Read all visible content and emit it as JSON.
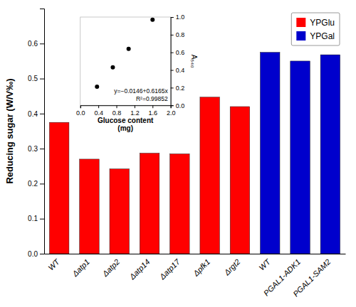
{
  "chart_data": [
    {
      "type": "bar",
      "categories": [
        "WT",
        "Δatp1",
        "Δatp2",
        "Δatp14",
        "Δatp17",
        "Δpfk1",
        "Δrgt2",
        "WT",
        "PGAL1-ADK1",
        "PGAL1-SAM2"
      ],
      "series": [
        {
          "name": "YPGlu",
          "color": "#ff0000",
          "values": [
            0.375,
            0.27,
            0.242,
            0.287,
            0.285,
            0.447,
            0.42,
            null,
            null,
            null
          ]
        },
        {
          "name": "YPGal",
          "color": "#0000cc",
          "values": [
            null,
            null,
            null,
            null,
            null,
            null,
            null,
            0.575,
            0.55,
            0.568
          ]
        }
      ],
      "ylabel": "Reducing sugar (W/V‰)",
      "ylim": [
        0.0,
        0.7
      ],
      "yticks": [
        {
          "value": 0.0,
          "label": "0.0"
        },
        0.1,
        0.2,
        0.3,
        0.4,
        0.5,
        0.6
      ],
      "legend": "upper right",
      "grid": false
    },
    {
      "type": "scatter",
      "x": [
        0.37,
        0.72,
        1.07,
        1.6
      ],
      "values": [
        0.21,
        0.43,
        0.64,
        0.97
      ],
      "color": "#000000",
      "xlabel": "Glucose content\n(mg)",
      "ylabel": "A₅₄₀",
      "xlim": [
        0.0,
        2.0
      ],
      "ylim": [
        0.0,
        1.0
      ],
      "xticks": [
        {
          "value": 0.0,
          "label": "0.0"
        },
        0.4,
        0.8,
        1.2,
        1.6,
        {
          "value": 2.0,
          "label": "2.0"
        }
      ],
      "yticks": [
        {
          "value": 0.0,
          "label": "0.0"
        },
        0.2,
        0.4,
        0.6,
        0.8,
        {
          "value": 1.0,
          "label": "1.0"
        }
      ],
      "annotations": [
        "y=−0.0146+0.6165x",
        "R²=0.99852"
      ],
      "grid": false
    }
  ]
}
